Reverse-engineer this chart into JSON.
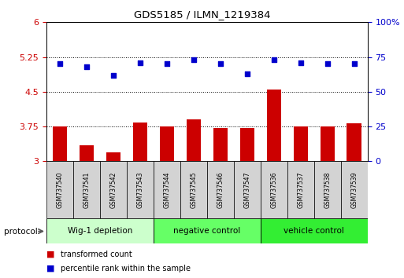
{
  "title": "GDS5185 / ILMN_1219384",
  "samples": [
    "GSM737540",
    "GSM737541",
    "GSM737542",
    "GSM737543",
    "GSM737544",
    "GSM737545",
    "GSM737546",
    "GSM737547",
    "GSM737536",
    "GSM737537",
    "GSM737538",
    "GSM737539"
  ],
  "bar_values": [
    3.75,
    3.35,
    3.2,
    3.83,
    3.75,
    3.9,
    3.72,
    3.72,
    4.55,
    3.75,
    3.75,
    3.82
  ],
  "dot_values": [
    70,
    68,
    62,
    71,
    70,
    73,
    70,
    63,
    73,
    71,
    70,
    70
  ],
  "bar_color": "#cc0000",
  "dot_color": "#0000cc",
  "ylim_left": [
    3,
    6
  ],
  "ylim_right": [
    0,
    100
  ],
  "yticks_left": [
    3,
    3.75,
    4.5,
    5.25,
    6
  ],
  "yticks_right": [
    0,
    25,
    50,
    75,
    100
  ],
  "ytick_labels_left": [
    "3",
    "3.75",
    "4.5",
    "5.25",
    "6"
  ],
  "ytick_labels_right": [
    "0",
    "25",
    "50",
    "75",
    "100%"
  ],
  "groups": [
    {
      "label": "Wig-1 depletion",
      "start": 0,
      "end": 3,
      "color": "#ccffcc"
    },
    {
      "label": "negative control",
      "start": 4,
      "end": 7,
      "color": "#66ff66"
    },
    {
      "label": "vehicle control",
      "start": 8,
      "end": 11,
      "color": "#33ee33"
    }
  ],
  "xlabel_protocol": "protocol",
  "legend_bar_label": "transformed count",
  "legend_dot_label": "percentile rank within the sample",
  "tick_label_color_left": "#cc0000",
  "tick_label_color_right": "#0000cc",
  "bar_bottom": 3.0
}
